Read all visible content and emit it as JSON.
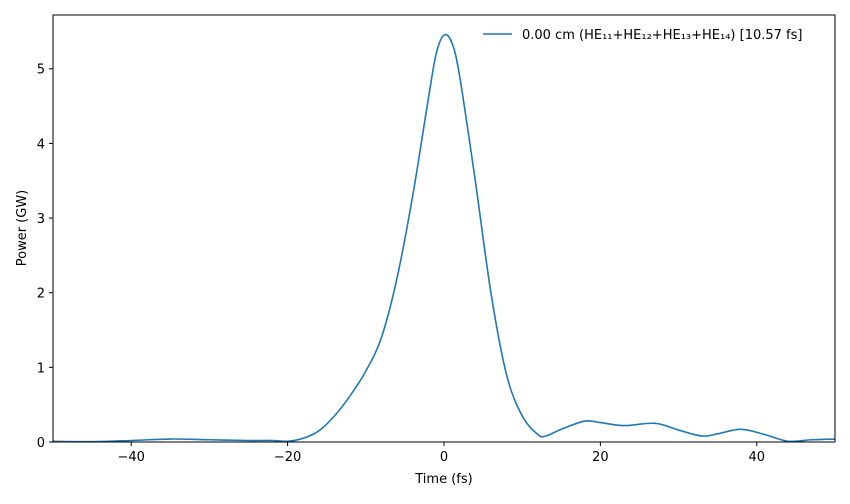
{
  "chart_data": {
    "type": "line",
    "xlabel": "Time (fs)",
    "ylabel": "Power (GW)",
    "xlim": [
      -50,
      50
    ],
    "ylim": [
      0,
      5.72
    ],
    "xticks": [
      -40,
      -20,
      0,
      20,
      40
    ],
    "yticks": [
      0,
      1,
      2,
      3,
      4,
      5
    ],
    "grid": false,
    "legend_position": "top-right",
    "series": [
      {
        "name": "0.00 cm (HE₁₁+HE₁₂+HE₁₃+HE₁₄) [10.57 fs]",
        "color": "#1f77b4",
        "x": [
          -50,
          -45,
          -40,
          -35,
          -30,
          -25,
          -22,
          -20,
          -18,
          -16,
          -14,
          -12,
          -10,
          -8,
          -6,
          -4,
          -2,
          -1,
          0,
          1,
          2,
          4,
          6,
          8,
          10,
          12,
          13,
          15,
          18,
          20,
          23,
          27,
          30,
          33,
          35,
          38,
          41,
          44,
          47,
          50
        ],
        "y": [
          0.01,
          0.005,
          0.02,
          0.04,
          0.03,
          0.02,
          0.02,
          0.01,
          0.05,
          0.15,
          0.35,
          0.62,
          0.95,
          1.4,
          2.2,
          3.3,
          4.6,
          5.2,
          5.45,
          5.35,
          4.9,
          3.5,
          2.0,
          0.9,
          0.35,
          0.1,
          0.08,
          0.17,
          0.28,
          0.26,
          0.22,
          0.25,
          0.16,
          0.08,
          0.11,
          0.17,
          0.1,
          0.01,
          0.03,
          0.04
        ]
      }
    ]
  }
}
